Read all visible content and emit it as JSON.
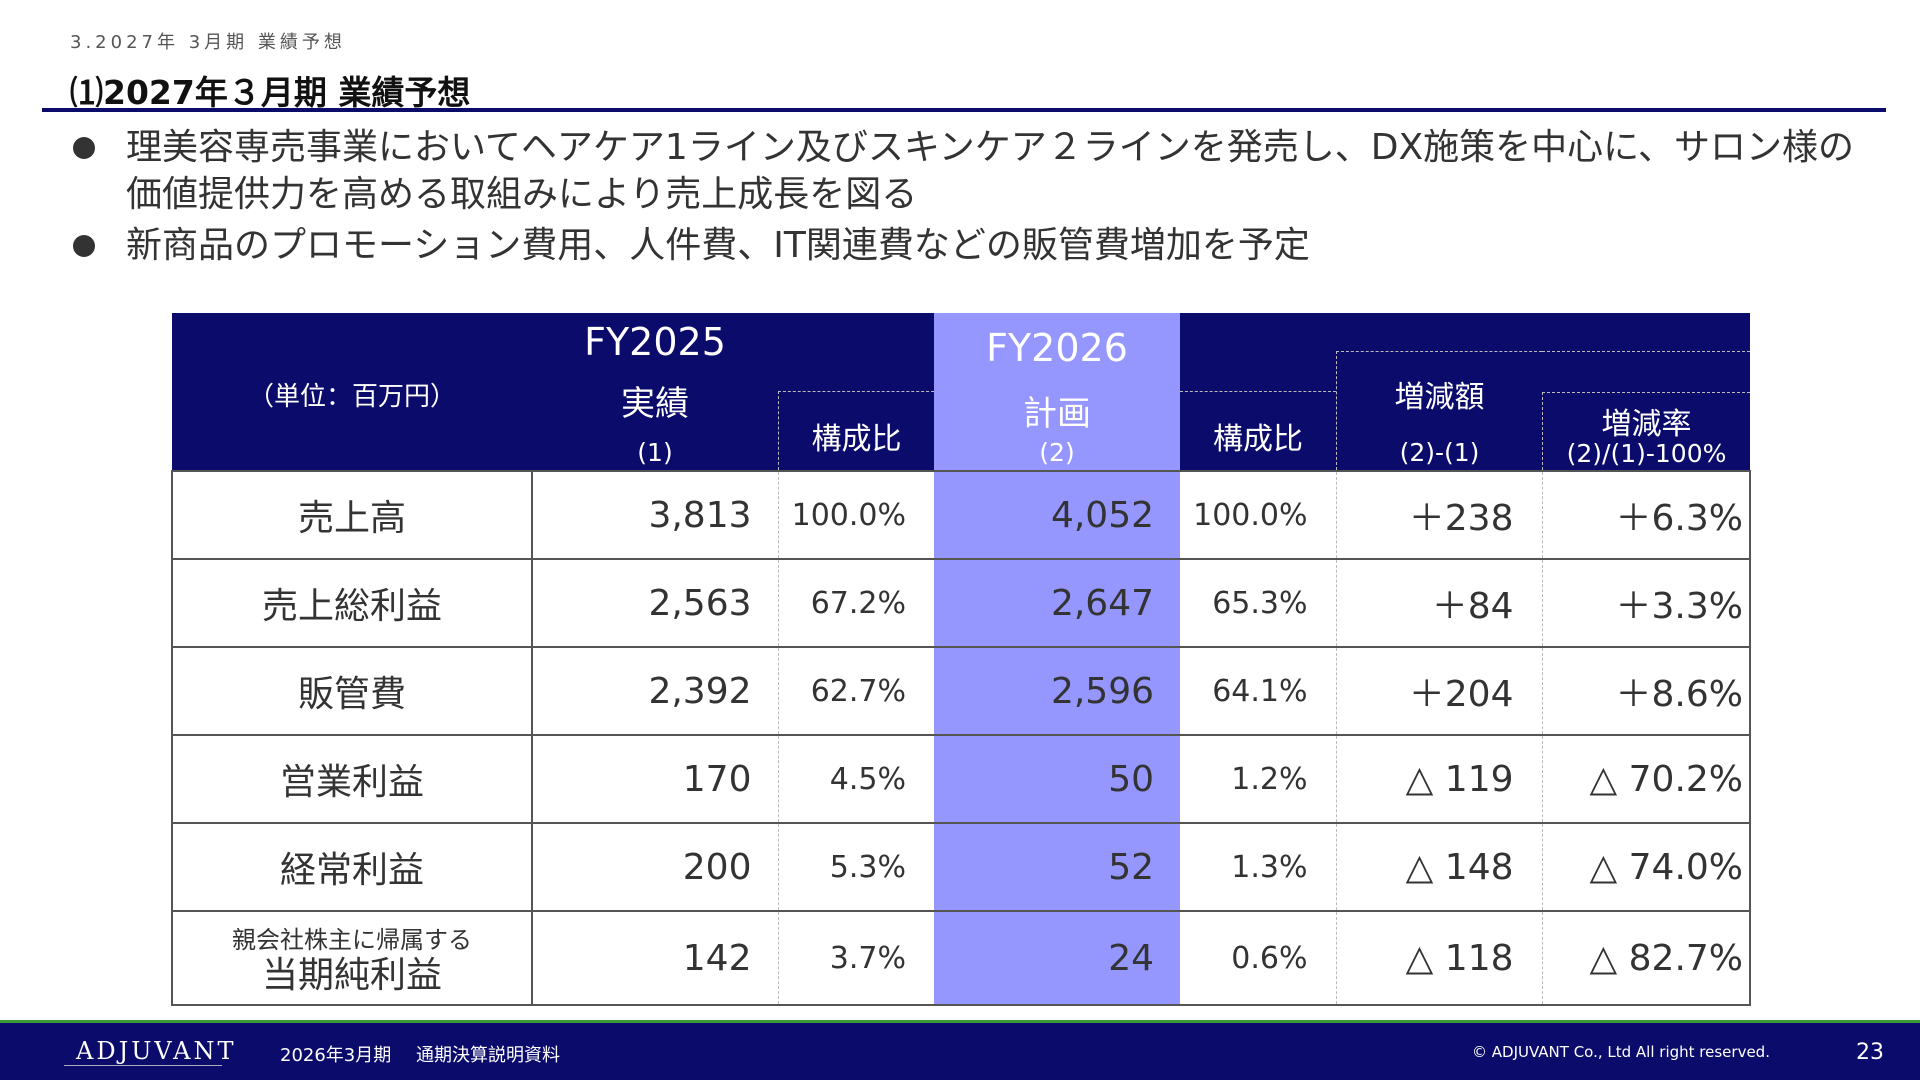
{
  "breadcrumb": "3.2027年 3月期 業績予想",
  "title": "⑴2027年３月期 業績予想",
  "bullets": [
    "理美容専売事業においてヘアケア1ライン及びスキンケア２ラインを発売し、DX施策を中心に、サロン様の価値提供力を高める取組みにより売上成長を図る",
    "新商品のプロモーション費用、人件費、IT関連費などの販管費増加を予定"
  ],
  "table": {
    "unit": "（単位：百万円）",
    "fy2025": {
      "year": "FY2025",
      "label": "実績",
      "num": "(1)"
    },
    "fy2026": {
      "year": "FY2026",
      "label": "計画",
      "num": "(2)"
    },
    "ratio_label": "構成比",
    "change_label": "増減額",
    "change_formula": "(2)-(1)",
    "rate_label": "増減率",
    "rate_formula": "(2)/(1)-100%",
    "rows": [
      {
        "item": "売上高",
        "fy2025": "3,813",
        "fy2025_ratio": "100.0%",
        "fy2026": "4,052",
        "fy2026_ratio": "100.0%",
        "change": "＋238",
        "rate": "＋6.3%"
      },
      {
        "item": "売上総利益",
        "fy2025": "2,563",
        "fy2025_ratio": "67.2%",
        "fy2026": "2,647",
        "fy2026_ratio": "65.3%",
        "change": "＋84",
        "rate": "＋3.3%"
      },
      {
        "item": "販管費",
        "fy2025": "2,392",
        "fy2025_ratio": "62.7%",
        "fy2026": "2,596",
        "fy2026_ratio": "64.1%",
        "change": "＋204",
        "rate": "＋8.6%"
      },
      {
        "item": "営業利益",
        "fy2025": "170",
        "fy2025_ratio": "4.5%",
        "fy2026": "50",
        "fy2026_ratio": "1.2%",
        "change": "△ 119",
        "rate": "△ 70.2%"
      },
      {
        "item": "経常利益",
        "fy2025": "200",
        "fy2025_ratio": "5.3%",
        "fy2026": "52",
        "fy2026_ratio": "1.3%",
        "change": "△ 148",
        "rate": "△ 74.0%"
      },
      {
        "item_small": "親会社株主に帰属する",
        "item": "当期純利益",
        "fy2025": "142",
        "fy2025_ratio": "3.7%",
        "fy2026": "24",
        "fy2026_ratio": "0.6%",
        "change": "△ 118",
        "rate": "△ 82.7%"
      }
    ]
  },
  "footer": {
    "logo": "ADJUVANT",
    "period": "2026年3月期",
    "doc": "通期決算説明資料",
    "copyright": "© ADJUVANT Co., Ltd All right reserved.",
    "page": "23"
  },
  "colors": {
    "navy": "#0b0b6b",
    "highlight": "#9696ff",
    "footer_accent": "#3a9a3a"
  }
}
